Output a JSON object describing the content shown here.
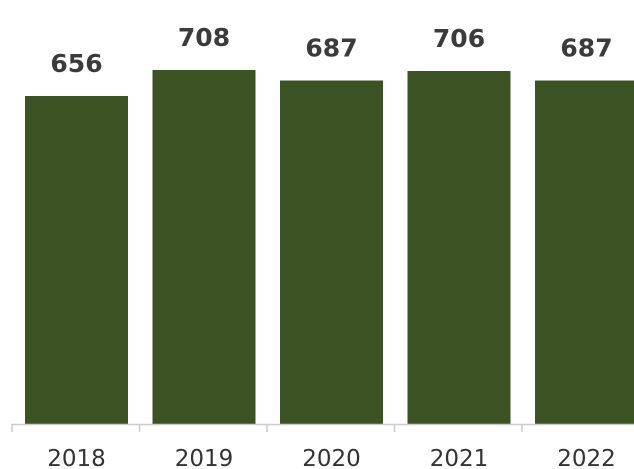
{
  "chart_data": {
    "type": "bar",
    "categories": [
      "2018",
      "2019",
      "2020",
      "2021",
      "2022"
    ],
    "values": [
      656,
      708,
      687,
      706,
      687
    ],
    "title": "",
    "xlabel": "",
    "ylabel": "",
    "ylim": [
      0,
      760
    ],
    "grid": false,
    "legend": "none",
    "data_labels": true,
    "colors": {
      "bar": "#3b5323",
      "axis": "#cccccc",
      "data_label": "#3b3b3b",
      "tick_label": "#333333"
    }
  }
}
